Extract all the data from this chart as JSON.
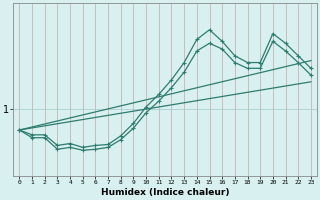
{
  "xlabel": "Humidex (Indice chaleur)",
  "bg_color": "#d8f0f0",
  "line_color": "#2d7d6e",
  "grid_color": "#b0d8d8",
  "ytick_labels": [
    "1"
  ],
  "ytick_positions": [
    1.0
  ],
  "xlim": [
    -0.5,
    23.5
  ],
  "ylim": [
    0.3,
    2.1
  ],
  "line1_x": [
    0,
    1,
    2,
    3,
    4,
    5,
    6,
    7,
    8,
    9,
    10,
    11,
    12,
    13,
    14,
    15,
    16,
    17,
    18,
    19,
    20,
    21,
    22,
    23
  ],
  "line1_y": [
    0.78,
    0.73,
    0.73,
    0.62,
    0.64,
    0.6,
    0.62,
    0.63,
    0.72,
    0.85,
    1.02,
    1.15,
    1.3,
    1.48,
    1.72,
    1.82,
    1.7,
    1.55,
    1.48,
    1.48,
    1.78,
    1.68,
    1.55,
    1.42
  ],
  "line2_x": [
    0,
    1,
    2,
    3,
    4,
    5,
    6,
    7,
    8,
    9,
    10,
    11,
    12,
    13,
    14,
    15,
    16,
    17,
    18,
    19,
    20,
    21,
    22,
    23
  ],
  "line2_y": [
    0.78,
    0.7,
    0.7,
    0.58,
    0.6,
    0.57,
    0.58,
    0.6,
    0.68,
    0.8,
    0.96,
    1.08,
    1.22,
    1.38,
    1.6,
    1.68,
    1.62,
    1.48,
    1.42,
    1.42,
    1.7,
    1.6,
    1.48,
    1.35
  ],
  "line3_x": [
    0,
    23
  ],
  "line3_y": [
    0.78,
    1.5
  ],
  "line4_x": [
    0,
    23
  ],
  "line4_y": [
    0.78,
    1.28
  ]
}
